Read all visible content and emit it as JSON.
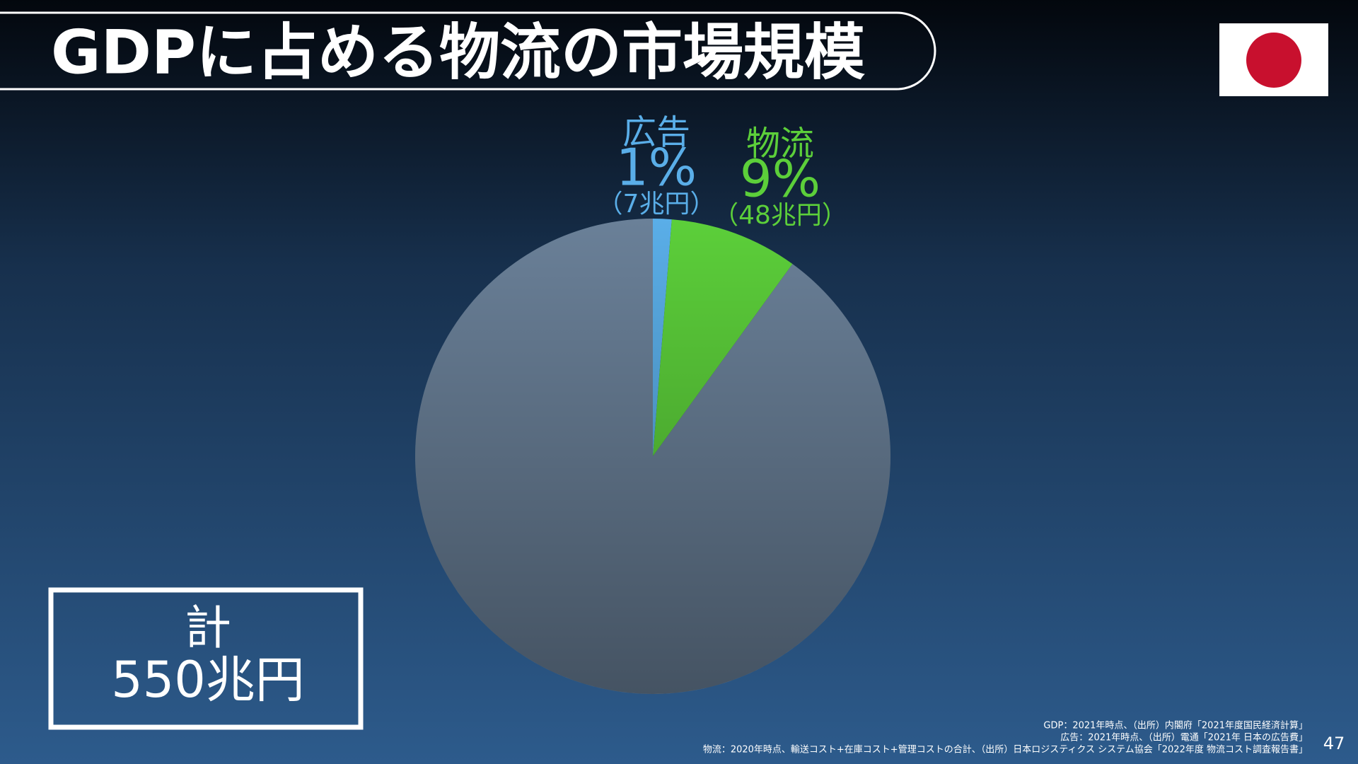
{
  "chart_data": {
    "type": "pie",
    "title": "GDPに占める物流の市場規模",
    "categories": [
      "広告",
      "物流",
      null
    ],
    "values": [
      7,
      48,
      495
    ],
    "value_labels": [
      "（7兆円）",
      "（48兆円）",
      null
    ],
    "percents": [
      1,
      9,
      null
    ],
    "percent_labels": [
      "1%",
      "9%",
      null
    ],
    "colors": [
      "#5aaee8",
      "#5ccf3a",
      "#6a8098"
    ],
    "total": {
      "label": "計",
      "value": 550,
      "value_label": "550兆円"
    },
    "notes": [
      "GDP：2021年時点、（出所）内閣府「2021年度国民経済計算」",
      "広告：2021年時点、（出所）電通「2021年 日本の広告費」",
      "物流：2020年時点、輸送コスト+在庫コスト+管理コストの合計、（出所）日本ロジスティクス システム協会「2022年度 物流コスト調査報告書」"
    ]
  },
  "page_number": 47
}
